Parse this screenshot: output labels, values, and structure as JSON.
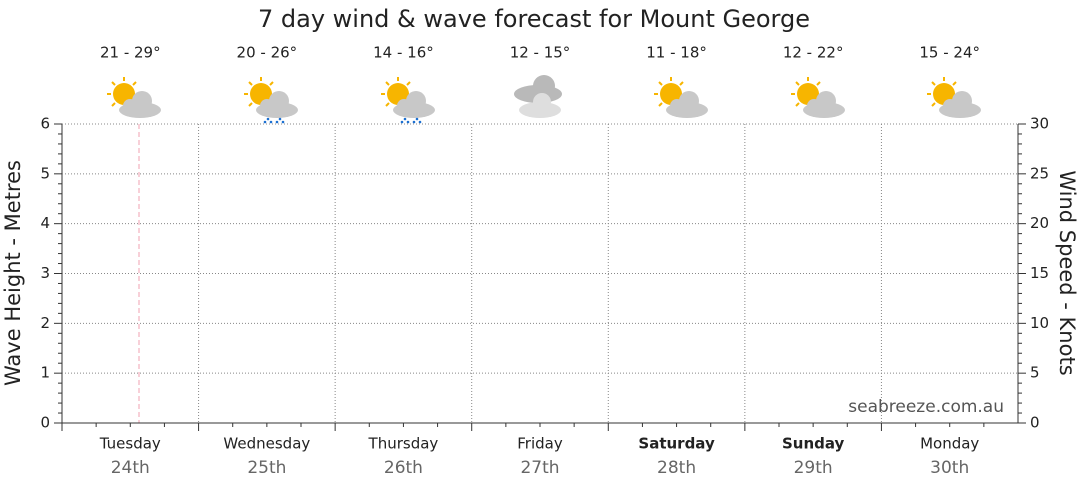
{
  "chart_data": {
    "type": "line",
    "title": "7 day wind & wave forecast for Mount George",
    "categories": [
      "Tuesday",
      "Wednesday",
      "Thursday",
      "Friday",
      "Saturday",
      "Sunday",
      "Monday"
    ],
    "dates": [
      "24th",
      "25th",
      "26th",
      "27th",
      "28th",
      "29th",
      "30th"
    ],
    "temperatures": [
      "21 - 29°",
      "20 - 26°",
      "14 - 16°",
      "12 - 15°",
      "11 - 18°",
      "12 - 22°",
      "15 - 24°"
    ],
    "ylabel": "Wave Height - Metres",
    "y2label": "Wind Speed - Knots",
    "ylim": [
      0,
      6
    ],
    "yticks": [
      0,
      1,
      2,
      3,
      4,
      5,
      6
    ],
    "y2lim": [
      0,
      30
    ],
    "y2ticks": [
      0,
      5,
      10,
      15,
      20,
      25,
      30
    ],
    "grid": true,
    "watermark": "seabreeze.com.au"
  }
}
